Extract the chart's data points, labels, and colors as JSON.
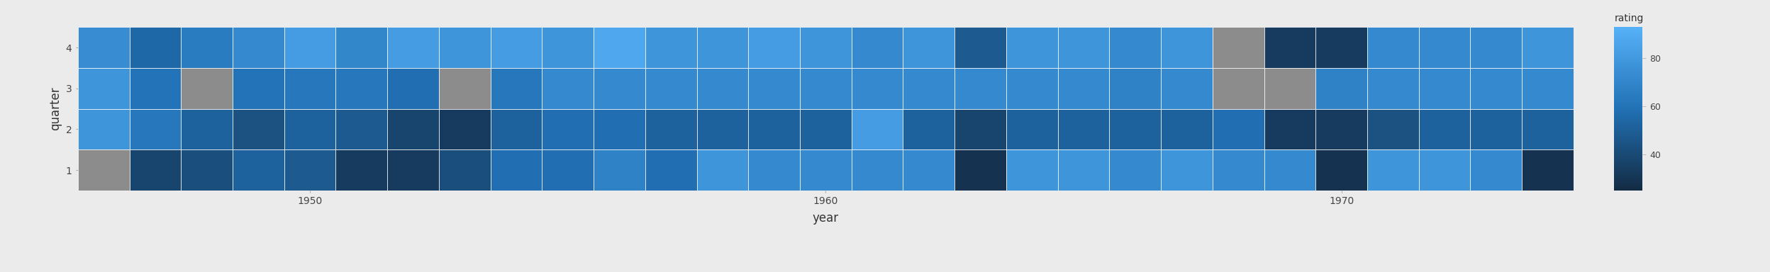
{
  "title": "",
  "xlabel": "year",
  "ylabel": "quarter",
  "colorbar_label": "rating",
  "years": [
    1946,
    1947,
    1948,
    1949,
    1950,
    1951,
    1952,
    1953,
    1954,
    1955,
    1956,
    1957,
    1958,
    1959,
    1960,
    1961,
    1962,
    1963,
    1964,
    1965,
    1966,
    1967,
    1968,
    1969,
    1970,
    1971,
    1972,
    1973,
    1974
  ],
  "colorbar_ticks": [
    40,
    60,
    80
  ],
  "na_color": "#8c8c8c",
  "data": {
    "q4": [
      74,
      55,
      65,
      72,
      82,
      70,
      82,
      78,
      82,
      78,
      88,
      78,
      78,
      82,
      78,
      72,
      78,
      48,
      78,
      78,
      72,
      78,
      null,
      33,
      33,
      72,
      72,
      72,
      78
    ],
    "q3": [
      78,
      60,
      null,
      60,
      62,
      62,
      58,
      null,
      62,
      72,
      72,
      72,
      72,
      72,
      72,
      72,
      72,
      72,
      72,
      72,
      68,
      72,
      null,
      null,
      68,
      72,
      72,
      72,
      72
    ],
    "q2": [
      78,
      62,
      52,
      44,
      52,
      48,
      38,
      33,
      52,
      58,
      58,
      52,
      52,
      52,
      52,
      82,
      52,
      38,
      52,
      52,
      52,
      52,
      58,
      33,
      33,
      44,
      52,
      52,
      52
    ],
    "q1": [
      null,
      38,
      42,
      52,
      48,
      33,
      33,
      42,
      58,
      58,
      68,
      58,
      78,
      72,
      72,
      72,
      72,
      29,
      78,
      78,
      72,
      78,
      72,
      72,
      29,
      78,
      78,
      72,
      29
    ]
  },
  "vmin": 25,
  "vmax": 93,
  "low_color": "#132B43",
  "mid_color": "#2171B5",
  "high_color": "#56B1F7",
  "bg_color": "#ebebeb",
  "panel_bg": "#ebebeb",
  "grid_color": "#ffffff",
  "figsize": [
    24.96,
    3.84
  ],
  "dpi": 100
}
